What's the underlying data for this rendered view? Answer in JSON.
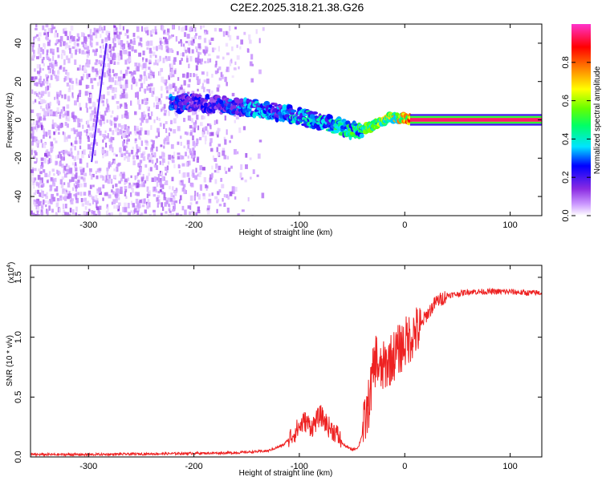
{
  "title": "C2E2.2025.318.21.38.G26",
  "chart_data": [
    {
      "type": "heatmap",
      "title": "C2E2.2025.318.21.38.G26",
      "xlabel": "Height of straight line (km)",
      "ylabel": "Frequency (Hz)",
      "xlim": [
        -355,
        130
      ],
      "ylim": [
        -50,
        50
      ],
      "xticks": [
        -300,
        -200,
        -100,
        0,
        100
      ],
      "xtick_labels": [
        "-300",
        "-200",
        "-100",
        "0",
        "100"
      ],
      "yticks": [
        -40,
        -20,
        0,
        20,
        40
      ],
      "ytick_labels": [
        "-40",
        "-20",
        "0",
        "20",
        "40"
      ],
      "colorbar": {
        "label": "Normalized spectral amplitude",
        "range": [
          0,
          1
        ],
        "ticks": [
          0,
          0.2,
          0.4,
          0.6,
          0.8
        ],
        "tick_labels": [
          "0.0",
          "0.2",
          "0.4",
          "0.6",
          "0.8"
        ],
        "colors": [
          "#ffffff",
          "#cc99ff",
          "#8a2be2",
          "#0000ff",
          "#00e5ff",
          "#00ff66",
          "#66ff00",
          "#ffff00",
          "#ff8c00",
          "#ff0000",
          "#ff33cc"
        ]
      },
      "signal_track": {
        "x": [
          -222,
          -200,
          -180,
          -160,
          -140,
          -120,
          -100,
          -80,
          -60,
          -45,
          -30,
          -15,
          0,
          5,
          130
        ],
        "freq": [
          8,
          9,
          8,
          7,
          6,
          4,
          2,
          -1,
          -4,
          -6,
          -3,
          1,
          1,
          0.5,
          0.5
        ],
        "amplitude": [
          0.35,
          0.3,
          0.3,
          0.35,
          0.4,
          0.35,
          0.45,
          0.45,
          0.5,
          0.55,
          0.6,
          0.7,
          0.8,
          0.9,
          0.95
        ]
      }
    },
    {
      "type": "line",
      "xlabel": "Height of straight line (km)",
      "ylabel": "SNR (10 * v/v)",
      "yscale_label": "(x10",
      "yscale_exponent": "4",
      "xlim": [
        -355,
        130
      ],
      "ylim": [
        0,
        1.6
      ],
      "xticks": [
        -300,
        -200,
        -100,
        0,
        100
      ],
      "xtick_labels": [
        "-300",
        "-200",
        "-100",
        "0",
        "100"
      ],
      "yticks": [
        0,
        0.5,
        1.0,
        1.5
      ],
      "ytick_labels": [
        "0.0",
        "0.5",
        "1.0",
        "1.5"
      ],
      "line_color": "#ee2222",
      "series": [
        {
          "name": "SNR",
          "x": [
            -355,
            -300,
            -250,
            -200,
            -160,
            -130,
            -115,
            -105,
            -95,
            -88,
            -80,
            -72,
            -65,
            -58,
            -50,
            -44,
            -40,
            -35,
            -30,
            -27,
            -24,
            -20,
            -15,
            -10,
            -5,
            0,
            5,
            10,
            14,
            18,
            22,
            26,
            30,
            35,
            40,
            50,
            60,
            80,
            100,
            115,
            130
          ],
          "y": [
            0.02,
            0.02,
            0.025,
            0.03,
            0.035,
            0.05,
            0.1,
            0.2,
            0.3,
            0.25,
            0.35,
            0.25,
            0.2,
            0.1,
            0.06,
            0.08,
            0.2,
            0.4,
            0.7,
            0.85,
            0.7,
            0.75,
            0.8,
            0.85,
            0.9,
            0.95,
            1.0,
            1.05,
            1.05,
            1.15,
            1.2,
            1.25,
            1.3,
            1.32,
            1.35,
            1.36,
            1.38,
            1.38,
            1.38,
            1.37,
            1.37
          ]
        }
      ]
    }
  ]
}
